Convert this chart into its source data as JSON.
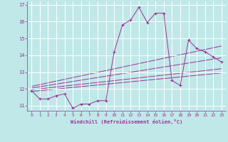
{
  "xlabel": "Windchill (Refroidissement éolien,°C)",
  "background_color": "#c0e8e8",
  "grid_color": "#ffffff",
  "line_color": "#993399",
  "xlim": [
    -0.5,
    23.5
  ],
  "ylim": [
    10.7,
    17.2
  ],
  "xticks": [
    0,
    1,
    2,
    3,
    4,
    5,
    6,
    7,
    8,
    9,
    10,
    11,
    12,
    13,
    14,
    15,
    16,
    17,
    18,
    19,
    20,
    21,
    22,
    23
  ],
  "yticks": [
    11,
    12,
    13,
    14,
    15,
    16,
    17
  ],
  "series": [
    [
      0,
      11.9
    ],
    [
      1,
      11.4
    ],
    [
      2,
      11.4
    ],
    [
      3,
      11.6
    ],
    [
      4,
      11.7
    ],
    [
      5,
      10.85
    ],
    [
      6,
      11.1
    ],
    [
      7,
      11.1
    ],
    [
      8,
      11.3
    ],
    [
      9,
      11.3
    ],
    [
      10,
      14.2
    ],
    [
      11,
      15.8
    ],
    [
      12,
      16.1
    ],
    [
      13,
      16.85
    ],
    [
      14,
      15.95
    ],
    [
      15,
      16.5
    ],
    [
      16,
      16.5
    ],
    [
      17,
      12.5
    ],
    [
      18,
      12.2
    ],
    [
      19,
      14.9
    ],
    [
      20,
      14.4
    ],
    [
      21,
      14.2
    ],
    [
      22,
      13.9
    ],
    [
      23,
      13.6
    ]
  ],
  "regression_lines": [
    {
      "x0": 0,
      "x1": 23,
      "y0": 11.85,
      "y1": 12.95
    },
    {
      "x0": 0,
      "x1": 23,
      "y0": 11.95,
      "y1": 13.2
    },
    {
      "x0": 0,
      "x1": 23,
      "y0": 12.05,
      "y1": 13.85
    },
    {
      "x0": 0,
      "x1": 23,
      "y0": 12.15,
      "y1": 14.55
    }
  ]
}
